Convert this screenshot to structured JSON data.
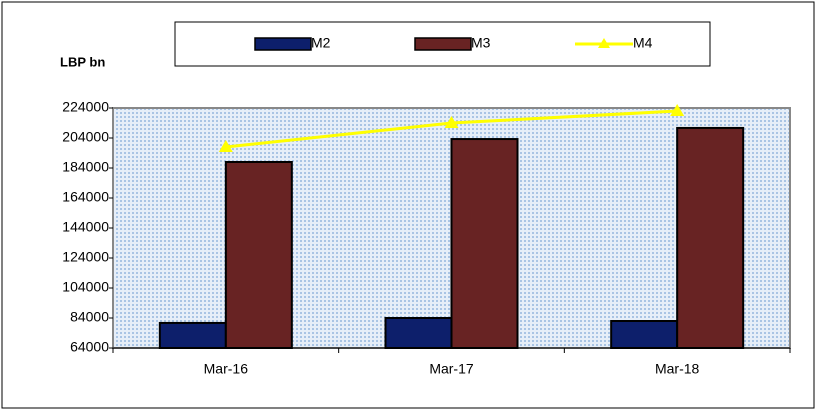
{
  "chart_data": {
    "type": "combo",
    "y_axis_label": "LBP bn",
    "categories": [
      "Mar-16",
      "Mar-17",
      "Mar-18"
    ],
    "series": [
      {
        "name": "M2",
        "type": "bar",
        "color": "#0d1f6b",
        "values": [
          80700,
          84000,
          82000
        ]
      },
      {
        "name": "M3",
        "type": "bar",
        "color": "#682323",
        "values": [
          188000,
          203300,
          210700
        ]
      },
      {
        "name": "M4",
        "type": "line",
        "color": "#ffff00",
        "values": [
          198000,
          214000,
          222000
        ]
      }
    ],
    "ylim": [
      64000,
      224000
    ],
    "yticks": [
      64000,
      84000,
      104000,
      124000,
      144000,
      164000,
      184000,
      204000,
      224000
    ],
    "grid": false,
    "legend": "top"
  }
}
